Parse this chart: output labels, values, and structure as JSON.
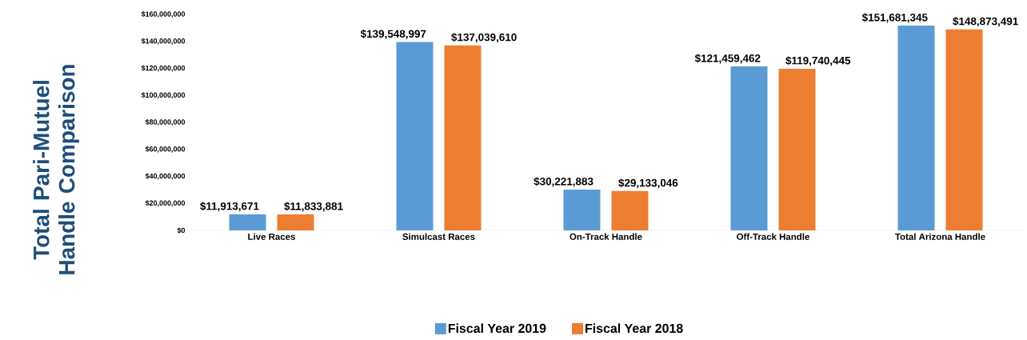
{
  "chart_data": {
    "type": "bar",
    "ylabel": "Total Pari-Mutuel Handle Comparison",
    "categories": [
      "Live Races",
      "Simulcast Races",
      "On-Track Handle",
      "Off-Track Handle",
      "Total Arizona Handle"
    ],
    "series": [
      {
        "name": "Fiscal Year 2019",
        "color": "#5b9bd5",
        "values": [
          11913671,
          139548997,
          30221883,
          121459462,
          151681345
        ],
        "value_labels": [
          "$11,913,671",
          "$139,548,997",
          "$30,221,883",
          "$121,459,462",
          "$151,681,345"
        ]
      },
      {
        "name": "Fiscal Year 2018",
        "color": "#ed7d31",
        "values": [
          11833881,
          137039610,
          29133046,
          119740445,
          148873491
        ],
        "value_labels": [
          "$11,833,881",
          "$137,039,610",
          "$29,133,046",
          "$119,740,445",
          "$148,873,491"
        ]
      }
    ],
    "ylim": [
      0,
      160000000
    ],
    "yticks": [
      {
        "value": 0,
        "label": "$0"
      },
      {
        "value": 20000000,
        "label": "$20,000,000"
      },
      {
        "value": 40000000,
        "label": "$40,000,000"
      },
      {
        "value": 60000000,
        "label": "$60,000,000"
      },
      {
        "value": 80000000,
        "label": "$80,000,000"
      },
      {
        "value": 100000000,
        "label": "$100,000,000"
      },
      {
        "value": 120000000,
        "label": "$120,000,000"
      },
      {
        "value": 140000000,
        "label": "$140,000,000"
      },
      {
        "value": 160000000,
        "label": "$160,000,000"
      }
    ],
    "legend": "bottom"
  }
}
